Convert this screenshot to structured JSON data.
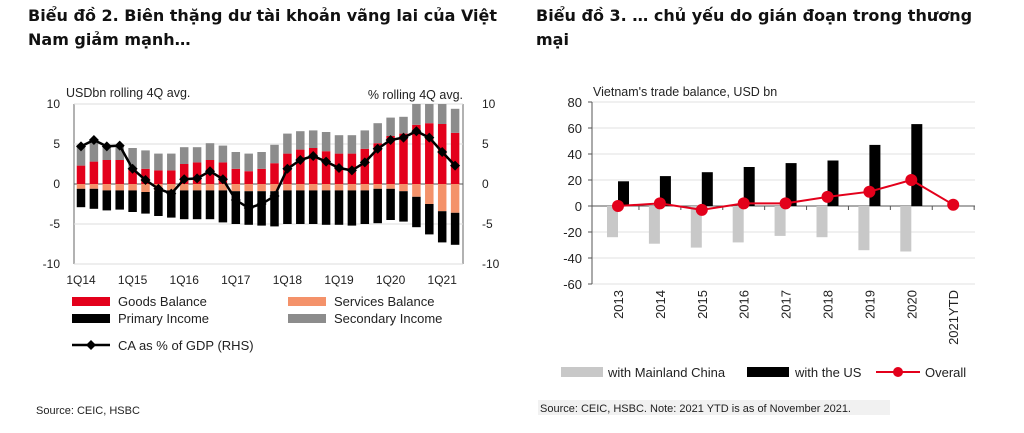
{
  "left_title": "Biểu đồ 2. Biên thặng dư tài khoản vãng lai của Việt Nam giảm mạnh…",
  "right_title": "Biểu đồ 3. … chủ yếu do gián đoạn trong thương mại",
  "chart_data": [
    {
      "type": "bar",
      "stacked": true,
      "ylabel_left": "USDbn rolling 4Q avg.",
      "ylabel_right": "% rolling 4Q avg.",
      "ylim": [
        -10,
        10
      ],
      "ylim_right": [
        -10,
        10
      ],
      "yticks": [
        "10",
        "5",
        "0",
        "-5",
        "-10"
      ],
      "xtick_labels": [
        "1Q14",
        "1Q15",
        "1Q16",
        "1Q17",
        "1Q18",
        "1Q19",
        "1Q20",
        "1Q21"
      ],
      "categories": [
        "1Q14",
        "2Q14",
        "3Q14",
        "4Q14",
        "1Q15",
        "2Q15",
        "3Q15",
        "4Q15",
        "1Q16",
        "2Q16",
        "3Q16",
        "4Q16",
        "1Q17",
        "2Q17",
        "3Q17",
        "4Q17",
        "1Q18",
        "2Q18",
        "3Q18",
        "4Q18",
        "1Q19",
        "2Q19",
        "3Q19",
        "4Q19",
        "1Q20",
        "2Q20",
        "3Q20",
        "4Q20",
        "1Q21",
        "2Q21"
      ],
      "series": [
        {
          "name": "Goods Balance",
          "color": "#e3001b",
          "values": [
            2.3,
            2.8,
            3.0,
            3.0,
            1.8,
            1.9,
            1.7,
            1.7,
            2.5,
            2.7,
            3.0,
            2.7,
            1.9,
            1.6,
            1.9,
            2.6,
            3.8,
            4.3,
            4.5,
            4.1,
            3.8,
            3.8,
            4.4,
            5.1,
            6.0,
            6.3,
            7.4,
            7.6,
            7.5,
            6.4
          ]
        },
        {
          "name": "Services Balance",
          "color": "#f4926a",
          "values": [
            -0.6,
            -0.6,
            -0.8,
            -0.8,
            -0.8,
            -1.0,
            -0.8,
            -0.8,
            -0.8,
            -0.8,
            -0.8,
            -0.8,
            -0.9,
            -0.9,
            -0.9,
            -0.9,
            -0.8,
            -0.8,
            -0.8,
            -0.8,
            -0.8,
            -0.8,
            -0.8,
            -0.6,
            -0.6,
            -0.9,
            -1.6,
            -2.5,
            -3.4,
            -3.6
          ]
        },
        {
          "name": "Primary Income",
          "color": "#000000",
          "values": [
            -2.3,
            -2.5,
            -2.5,
            -2.4,
            -2.7,
            -2.7,
            -3.2,
            -3.4,
            -3.6,
            -3.6,
            -3.6,
            -4.0,
            -4.1,
            -4.2,
            -4.3,
            -4.4,
            -4.2,
            -4.2,
            -4.2,
            -4.3,
            -4.3,
            -4.4,
            -4.2,
            -4.3,
            -3.9,
            -3.8,
            -3.8,
            -3.8,
            -3.9,
            -4.0
          ]
        },
        {
          "name": "Secondary Income",
          "color": "#8c8c8c",
          "values": [
            2.6,
            2.5,
            1.9,
            1.7,
            2.7,
            2.3,
            2.1,
            2.1,
            2.1,
            1.9,
            2.1,
            2.1,
            2.1,
            2.2,
            2.1,
            2.3,
            2.5,
            2.3,
            2.2,
            2.4,
            2.3,
            2.3,
            2.3,
            2.5,
            2.3,
            2.1,
            2.6,
            2.4,
            2.5,
            3.0
          ]
        },
        {
          "name": "CA as % of GDP (RHS)",
          "type": "line",
          "axis": "right",
          "color": "#000000",
          "values": [
            4.7,
            5.5,
            4.7,
            4.8,
            1.9,
            0.5,
            -0.6,
            -1.2,
            0.6,
            0.7,
            1.6,
            0.6,
            -2.0,
            -3.0,
            -2.5,
            -1.5,
            1.9,
            3.0,
            3.5,
            2.8,
            2.0,
            1.7,
            2.7,
            4.4,
            5.5,
            5.8,
            6.6,
            5.8,
            4.0,
            2.3
          ]
        }
      ],
      "legend_placement": "bottom",
      "source": "Source: CEIC, HSBC"
    },
    {
      "type": "bar",
      "title": "Vietnam's  trade balance, USD bn",
      "ylim": [
        -60,
        80
      ],
      "yticks": [
        "80",
        "60",
        "40",
        "20",
        "0",
        "-20",
        "-40",
        "-60"
      ],
      "grid": true,
      "categories": [
        "2013",
        "2014",
        "2015",
        "2016",
        "2017",
        "2018",
        "2019",
        "2020",
        "2021YTD"
      ],
      "series": [
        {
          "name": "with Mainland China",
          "color": "#c8c8c8",
          "values": [
            -24,
            -29,
            -32,
            -28,
            -23,
            -24,
            -34,
            -35,
            null
          ]
        },
        {
          "name": "with the US",
          "color": "#000000",
          "values": [
            19,
            23,
            26,
            30,
            33,
            35,
            47,
            63,
            null
          ]
        },
        {
          "name": "Overall",
          "type": "line",
          "color": "#e3001b",
          "values": [
            0,
            2,
            -3,
            2,
            2,
            7,
            11,
            20,
            1
          ]
        }
      ],
      "legend_placement": "bottom",
      "source": "Source: CEIC, HSBC. Note: 2021 YTD is as of November 2021."
    }
  ]
}
